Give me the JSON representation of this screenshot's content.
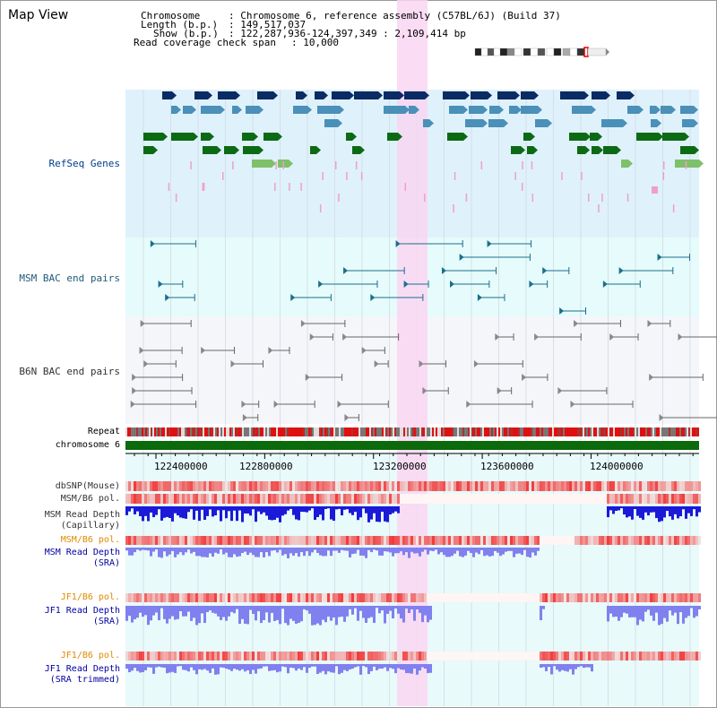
{
  "page": {
    "title": "Map View",
    "info": {
      "chromosome_key": "Chromosome",
      "chromosome_val": ": Chromosome 6, reference assembly (C57BL/6J) (Build 37)",
      "length_key": "Length (b.p.)",
      "length_val": ": 149,517,037",
      "show_key": "Show (b.p.)",
      "show_val": ": 122,287,936-124,397,349 : 2,109,414 bp",
      "coverage_key": "Read coverage check span",
      "coverage_val": ": 10,000"
    }
  },
  "tracks": {
    "refseq": "RefSeq Genes",
    "msm_bac": "MSM BAC end pairs",
    "b6n_bac": "B6N BAC end pairs",
    "repeat": "Repeat",
    "chromosome": "chromosome 6",
    "dbsnp": "dbSNP(Mouse)",
    "msm_b6_pol_1": "MSM/B6 pol.",
    "msm_read_cap_1": "MSM Read Depth",
    "msm_read_cap_2": "(Capillary)",
    "msm_b6_pol_2": "MSM/B6 pol.",
    "msm_read_sra_1": "MSM Read Depth",
    "msm_read_sra_2": "(SRA)",
    "jf1_b6_pol_1": "JF1/B6 pol.",
    "jf1_read_sra_1": "JF1 Read Depth",
    "jf1_read_sra_2": "(SRA)",
    "jf1_b6_pol_2": "JF1/B6 pol.",
    "jf1_read_trim_1": "JF1 Read Depth",
    "jf1_read_trim_2": "(SRA trimmed)"
  },
  "axis": {
    "ticks": [
      "122400000",
      "122800000",
      "123200000",
      "123600000",
      "124000000"
    ],
    "tick_values": [
      122400000,
      122800000,
      123200000,
      123600000,
      124000000
    ],
    "range_start": 122287936,
    "range_end": 124397349
  },
  "colors": {
    "refseq_bg": "#dff1fb",
    "msm_bac_bg": "#e6fbfb",
    "b6n_bac_bg": "#f4f6fa",
    "highlight": "#f9d6f2",
    "gene_dark": "#0a2b63",
    "gene_mid": "#4a90b8",
    "gene_green": "#0c6a14",
    "gene_light": "#7fc06a",
    "gene_pink": "#f0a0c8",
    "bac_line": "#1b6f8c",
    "b6n_line": "#666666",
    "repeat_red": "#e01010",
    "chrom_green": "#0b6a0b",
    "snp_pink": "#f5a0a0",
    "depth_blue": "#1a1ad8",
    "depth_light": "#8080ee",
    "label_blue": "#003c8c",
    "label_teal": "#1f5a7a",
    "label_orange": "#e08a00",
    "label_darkblue": "#0000a0",
    "label_gray": "#333333"
  }
}
